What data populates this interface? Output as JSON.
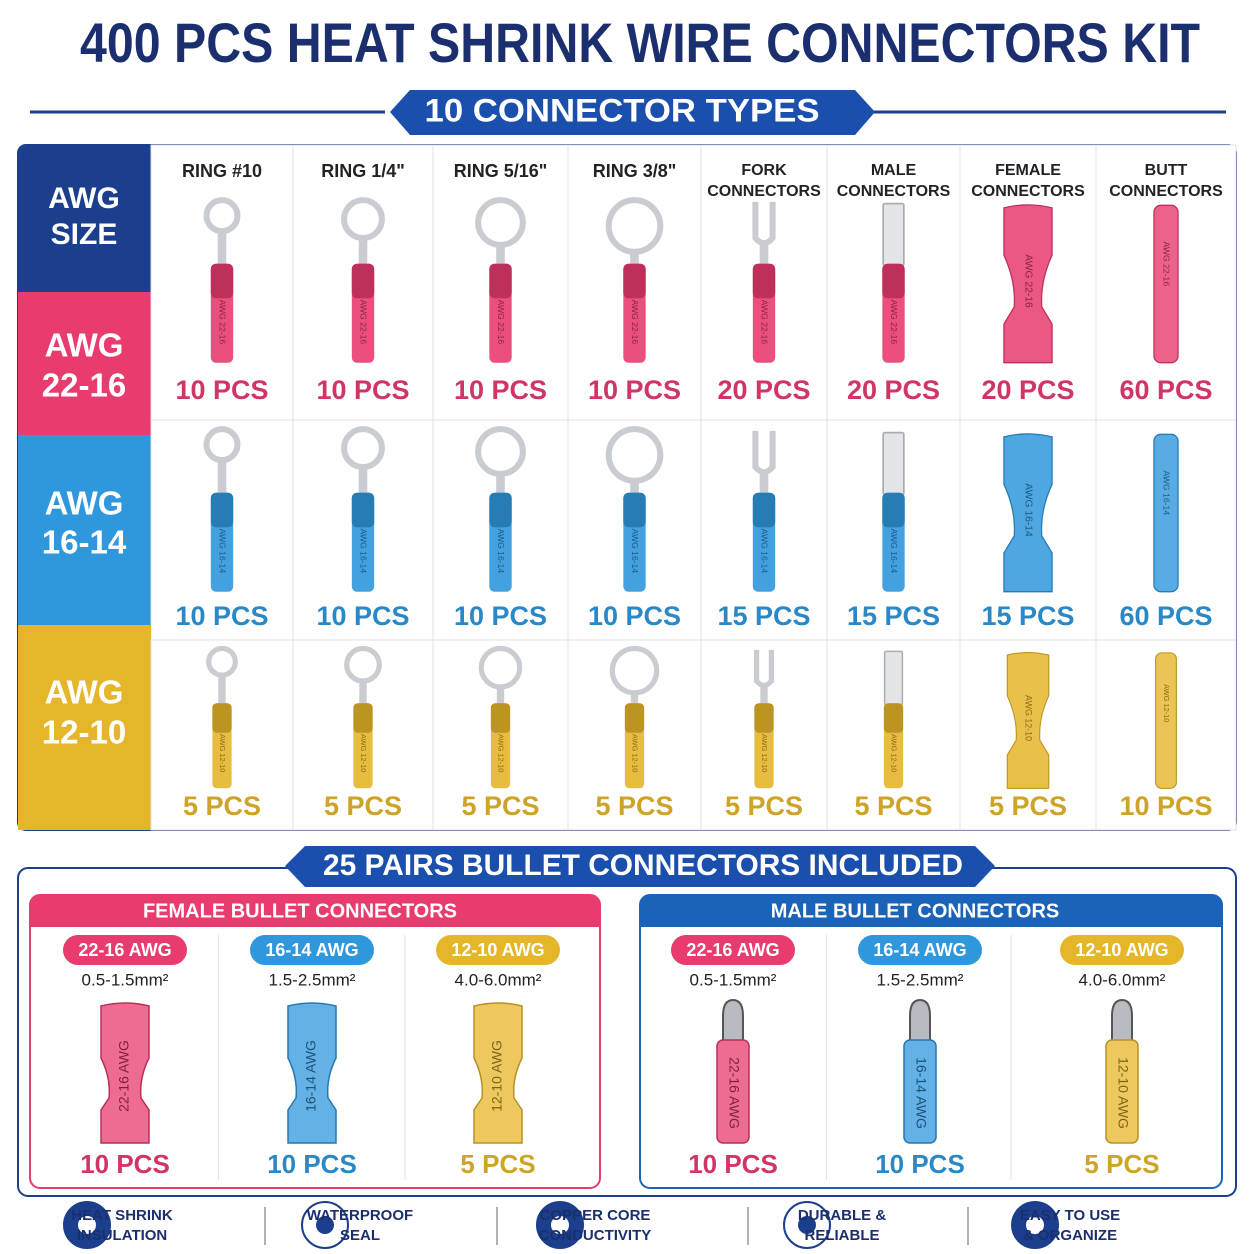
{
  "title": "400 PCS HEAT SHRINK WIRE CONNECTORS KIT",
  "types_banner": "10 CONNECTOR TYPES",
  "grid": {
    "corner": [
      "AWG",
      "SIZE"
    ],
    "columns": [
      [
        "RING #10"
      ],
      [
        "RING 1/4\""
      ],
      [
        "RING 5/16\""
      ],
      [
        "RING 3/8\""
      ],
      [
        "FORK",
        "CONNECTORS"
      ],
      [
        "MALE",
        "CONNECTORS"
      ],
      [
        "FEMALE",
        "CONNECTORS"
      ],
      [
        "BUTT",
        "CONNECTORS"
      ]
    ],
    "rows": [
      {
        "label": [
          "AWG",
          "22-16"
        ],
        "color": "#e83b6e",
        "marking": "AWG 22-16",
        "counts": [
          "10 PCS",
          "10 PCS",
          "10 PCS",
          "10 PCS",
          "20 PCS",
          "20 PCS",
          "20 PCS",
          "60 PCS"
        ]
      },
      {
        "label": [
          "AWG",
          "16-14"
        ],
        "color": "#2f97dc",
        "marking": "AWG 16-14",
        "counts": [
          "10 PCS",
          "10 PCS",
          "10 PCS",
          "10 PCS",
          "15 PCS",
          "15 PCS",
          "15 PCS",
          "60 PCS"
        ]
      },
      {
        "label": [
          "AWG",
          "12-10"
        ],
        "color": "#e5b52a",
        "marking": "AWG 12-10",
        "counts": [
          "5 PCS",
          "5 PCS",
          "5 PCS",
          "5 PCS",
          "5 PCS",
          "5 PCS",
          "5 PCS",
          "10 PCS"
        ]
      }
    ]
  },
  "bullet_banner": "25 PAIRS BULLET CONNECTORS INCLUDED",
  "female": {
    "title": "FEMALE BULLET CONNECTORS",
    "items": [
      {
        "awg": "22-16 AWG",
        "size": "0.5-1.5mm²",
        "marking": "22-16 AWG",
        "count": "10 PCS"
      },
      {
        "awg": "16-14 AWG",
        "size": "1.5-2.5mm²",
        "marking": "16-14 AWG",
        "count": "10 PCS"
      },
      {
        "awg": "12-10 AWG",
        "size": "4.0-6.0mm²",
        "marking": "12-10 AWG",
        "count": "5 PCS"
      }
    ]
  },
  "male": {
    "title": "MALE BULLET CONNECTORS",
    "items": [
      {
        "awg": "22-16 AWG",
        "size": "0.5-1.5mm²",
        "marking": "22-16 AWG",
        "count": "10 PCS"
      },
      {
        "awg": "16-14 AWG",
        "size": "1.5-2.5mm²",
        "marking": "16-14 AWG",
        "count": "10 PCS"
      },
      {
        "awg": "12-10 AWG",
        "size": "4.0-6.0mm²",
        "marking": "12-10 AWG",
        "count": "5 PCS"
      }
    ]
  },
  "features": [
    [
      "HEAT SHRINK",
      "INSULATION"
    ],
    [
      "WATERPROOF",
      "SEAL"
    ],
    [
      "COPPER CORE",
      "CONDUCTIVITY"
    ],
    [
      "DURABLE &",
      "RELIABLE"
    ],
    [
      "EASY TO USE",
      "& ORGANIZE"
    ]
  ]
}
